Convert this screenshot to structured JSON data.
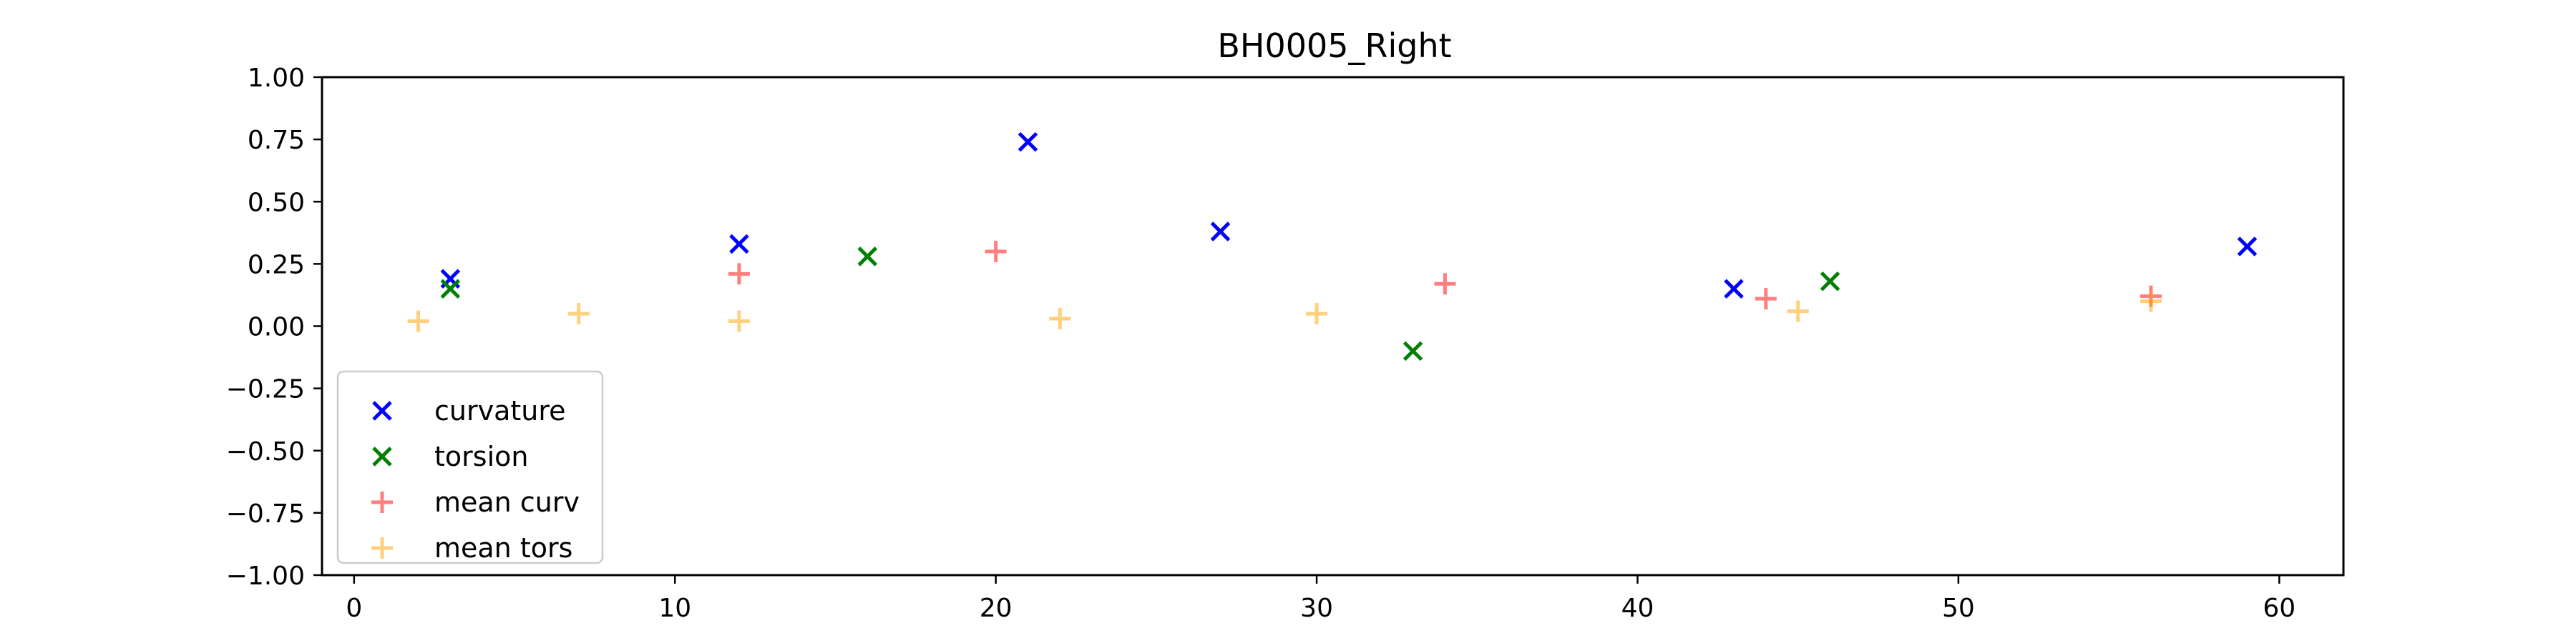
{
  "chart_data": {
    "type": "scatter",
    "title": "BH0005_Right",
    "xlabel": "",
    "ylabel": "",
    "xlim": [
      -1,
      62
    ],
    "ylim": [
      -1.0,
      1.0
    ],
    "xticks": [
      0,
      10,
      20,
      30,
      40,
      50,
      60
    ],
    "xtick_labels": [
      "0",
      "10",
      "20",
      "30",
      "40",
      "50",
      "60"
    ],
    "yticks": [
      -1.0,
      -0.75,
      -0.5,
      -0.25,
      0.0,
      0.25,
      0.5,
      0.75,
      1.0
    ],
    "ytick_labels": [
      "−1.00",
      "−0.75",
      "−0.50",
      "−0.25",
      "0.00",
      "0.25",
      "0.50",
      "0.75",
      "1.00"
    ],
    "grid": false,
    "legend_position": "lower-left",
    "series": [
      {
        "name": "curvature",
        "marker": "x",
        "color": "#0000ff",
        "opacity": 1.0,
        "x": [
          3,
          12,
          21,
          27,
          43,
          59
        ],
        "y": [
          0.19,
          0.33,
          0.74,
          0.38,
          0.15,
          0.32
        ]
      },
      {
        "name": "torsion",
        "marker": "x",
        "color": "#008000",
        "opacity": 1.0,
        "x": [
          3,
          16,
          33,
          46
        ],
        "y": [
          0.15,
          0.28,
          -0.1,
          0.18
        ]
      },
      {
        "name": "mean curv",
        "marker": "+",
        "color": "#ff0000",
        "opacity": 0.5,
        "x": [
          12,
          20,
          34,
          44,
          56
        ],
        "y": [
          0.21,
          0.3,
          0.17,
          0.11,
          0.12
        ]
      },
      {
        "name": "mean tors",
        "marker": "+",
        "color": "#ffa500",
        "opacity": 0.5,
        "x": [
          2,
          7,
          12,
          22,
          30,
          45,
          56
        ],
        "y": [
          0.02,
          0.05,
          0.02,
          0.03,
          0.05,
          0.06,
          0.1
        ]
      }
    ]
  }
}
